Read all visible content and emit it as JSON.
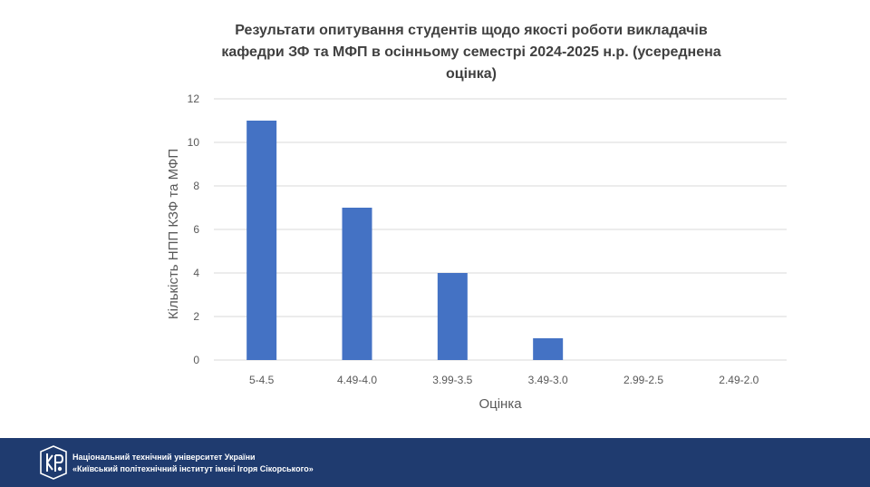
{
  "chart_data": {
    "type": "bar",
    "title_lines": [
      "Результати опитування студентів щодо якості роботи викладачів",
      "кафедри ЗФ та МФП в осінньому семестрі 2024-2025 н.р. (усереднена",
      "оцінка)"
    ],
    "xlabel": "Оцінка",
    "ylabel": "Кількість НПП КЗФ та МФП",
    "categories": [
      "5-4.5",
      "4.49-4.0",
      "3.99-3.5",
      "3.49-3.0",
      "2.99-2.5",
      "2.49-2.0"
    ],
    "values": [
      11,
      7,
      4,
      1,
      0,
      0
    ],
    "ylim": [
      0,
      12
    ],
    "yticks": [
      "0",
      "2",
      "4",
      "6",
      "8",
      "10",
      "12"
    ],
    "grid": true,
    "bar_color": "#4472c4",
    "grid_color": "#d9d9d9"
  },
  "footer": {
    "line1": "Національний технічний університет України",
    "line2": "«Київський політехнічний інститут імені Ігоря Сікорського»",
    "background": "#1f3b6f"
  }
}
